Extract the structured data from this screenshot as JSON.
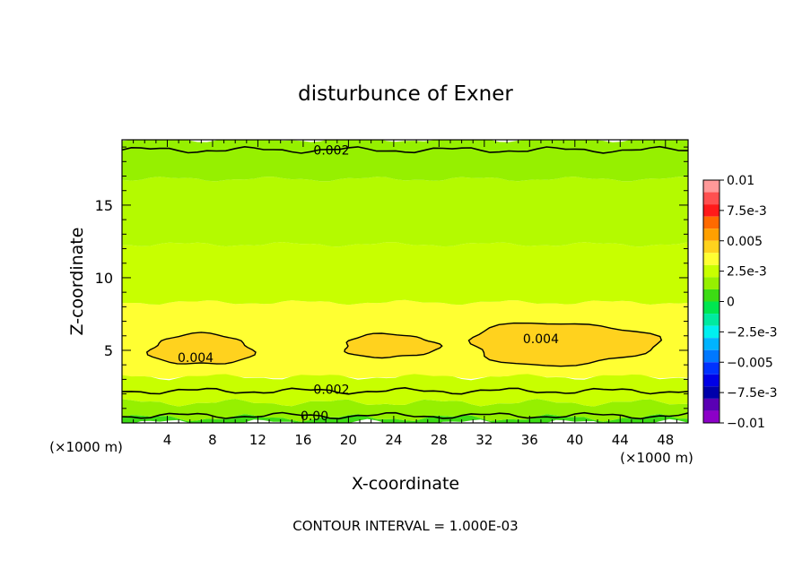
{
  "chart_data": {
    "type": "heatmap",
    "title": "disturbunce of Exner",
    "xlabel": "X-coordinate",
    "ylabel": "Z-coordinate",
    "x_unit_left": "(×1000 m)",
    "x_unit_right": "(×1000 m)",
    "xlim": [
      0,
      50
    ],
    "ylim": [
      0,
      19.5
    ],
    "xticks": [
      4,
      8,
      12,
      16,
      20,
      24,
      28,
      32,
      36,
      40,
      44,
      48
    ],
    "yticks": [
      5,
      10,
      15
    ],
    "footer": "CONTOUR INTERVAL = 1.000E-03",
    "colorbar": {
      "tick_labels": [
        "0.01",
        "7.5e-3",
        "0.005",
        "2.5e-3",
        "0",
        "−2.5e-3",
        "−0.005",
        "−7.5e-3",
        "−0.01"
      ],
      "tick_values": [
        0.01,
        0.0075,
        0.005,
        0.0025,
        0,
        -0.0025,
        -0.005,
        -0.0075,
        -0.01
      ],
      "levels": [
        {
          "min": 0.009,
          "max": 0.01,
          "color": "#ff9999"
        },
        {
          "min": 0.008,
          "max": 0.009,
          "color": "#ff5050"
        },
        {
          "min": 0.007,
          "max": 0.008,
          "color": "#ff1a1a"
        },
        {
          "min": 0.006,
          "max": 0.007,
          "color": "#ff6a00"
        },
        {
          "min": 0.005,
          "max": 0.006,
          "color": "#ffa000"
        },
        {
          "min": 0.004,
          "max": 0.005,
          "color": "#ffd21e"
        },
        {
          "min": 0.003,
          "max": 0.004,
          "color": "#ffff32"
        },
        {
          "min": 0.002,
          "max": 0.003,
          "color": "#c8ff00"
        },
        {
          "min": 0.001,
          "max": 0.002,
          "color": "#96f000"
        },
        {
          "min": 0.0,
          "max": 0.001,
          "color": "#3cdc14"
        },
        {
          "min": -0.001,
          "max": 0.0,
          "color": "#00e650"
        },
        {
          "min": -0.002,
          "max": -0.001,
          "color": "#00eaa0"
        },
        {
          "min": -0.003,
          "max": -0.002,
          "color": "#00f0f0"
        },
        {
          "min": -0.004,
          "max": -0.003,
          "color": "#00b4ff"
        },
        {
          "min": -0.005,
          "max": -0.004,
          "color": "#0078ff"
        },
        {
          "min": -0.006,
          "max": -0.005,
          "color": "#0032ff"
        },
        {
          "min": -0.007,
          "max": -0.006,
          "color": "#0000e6"
        },
        {
          "min": -0.008,
          "max": -0.007,
          "color": "#0000aa"
        },
        {
          "min": -0.009,
          "max": -0.008,
          "color": "#5a00b4"
        },
        {
          "min": -0.01,
          "max": -0.009,
          "color": "#8c00c8"
        }
      ]
    },
    "bands": [
      {
        "z_min": 0.0,
        "z_max": 0.35,
        "value_range": "0 to 1e-3",
        "color": "#3cdc14"
      },
      {
        "z_min": 0.35,
        "z_max": 1.4,
        "value_range": "1e-3 to 2e-3",
        "color": "#96f000"
      },
      {
        "z_min": 1.4,
        "z_max": 3.2,
        "value_range": "2e-3 to 3e-3",
        "color": "#c8ff00"
      },
      {
        "z_min": 3.2,
        "z_max": 8.3,
        "value_range": "3e-3 to 4e-3",
        "color": "#ffff32"
      },
      {
        "z_min": 8.3,
        "z_max": 12.3,
        "value_range": "2e-3 to 3e-3",
        "color": "#c8ff00"
      },
      {
        "z_min": 12.3,
        "z_max": 16.8,
        "value_range": "2e-3 to 3e-3",
        "color": "#b4fa00"
      },
      {
        "z_min": 16.8,
        "z_max": 19.5,
        "value_range": "1e-3 to 2e-3",
        "color": "#96f000"
      }
    ],
    "maxima_regions": [
      {
        "x_range": [
          2.5,
          11.5
        ],
        "z_range": [
          4.0,
          6.1
        ],
        "value_range": "4e-3 to 5e-3"
      },
      {
        "x_range": [
          19.5,
          27.8
        ],
        "z_range": [
          4.5,
          6.1
        ],
        "value_range": "4e-3 to 5e-3"
      },
      {
        "x_range": [
          30.5,
          47.0
        ],
        "z_range": [
          4.0,
          6.9
        ],
        "value_range": "4e-3 to 5e-3"
      }
    ],
    "contours": [
      {
        "value": 0.002,
        "label": "0.002",
        "z_approx": 18.8
      },
      {
        "value": 0.004,
        "label": "0.004",
        "z_approx": 5.0
      },
      {
        "value": 0.004,
        "label": "0.004",
        "z_approx": 5.5
      },
      {
        "value": 0.002,
        "label": "0.002",
        "z_approx": 2.2
      },
      {
        "value": 0.001,
        "label": "0.00",
        "z_approx": 0.5
      }
    ]
  }
}
